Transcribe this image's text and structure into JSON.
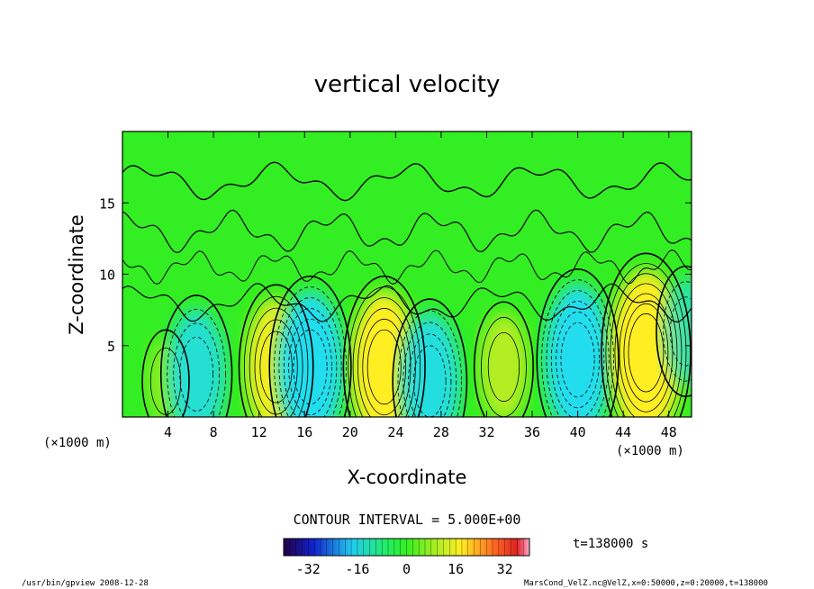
{
  "chart_data": {
    "type": "heatmap",
    "title": "vertical velocity",
    "xlabel": "X-coordinate",
    "ylabel": "Z-coordinate",
    "x_unit_left": "(×1000 m)",
    "x_unit_right": "(×1000 m)",
    "xlim": [
      0,
      50
    ],
    "ylim": [
      0,
      20
    ],
    "x_ticks": [
      4,
      8,
      12,
      16,
      20,
      24,
      28,
      32,
      36,
      40,
      44,
      48
    ],
    "y_ticks": [
      5,
      10,
      15
    ],
    "contour_interval_label": "CONTOUR INTERVAL = 5.000E+00",
    "contour_interval": 5,
    "time_label": "t=138000 s",
    "colorbar": {
      "range": [
        -40,
        40
      ],
      "ticks": [
        -32,
        -16,
        0,
        16,
        32
      ]
    },
    "cells": [
      {
        "x": 3.8,
        "z": 2.5,
        "w": 2,
        "type": "up"
      },
      {
        "x": 6.5,
        "z": 3.0,
        "w": -18,
        "type": "down"
      },
      {
        "x": 13.5,
        "z": 3.5,
        "w": 20,
        "type": "up"
      },
      {
        "x": 16.5,
        "z": 3.5,
        "w": -25,
        "type": "down"
      },
      {
        "x": 23.0,
        "z": 3.5,
        "w": 25,
        "type": "up"
      },
      {
        "x": 27.0,
        "z": 2.5,
        "w": -20,
        "type": "down"
      },
      {
        "x": 33.5,
        "z": 3.5,
        "w": 10,
        "type": "up"
      },
      {
        "x": 40.0,
        "z": 4.0,
        "w": -25,
        "type": "down"
      },
      {
        "x": 46.0,
        "z": 4.5,
        "w": 30,
        "type": "up"
      },
      {
        "x": 49.5,
        "z": 6.0,
        "w": -10,
        "type": "down"
      }
    ]
  },
  "footer": {
    "left": "/usr/bin/gpview   2008-12-28",
    "right": "MarsCond_VelZ.nc@VelZ,x=0:50000,z=0:20000,t=138000"
  },
  "colors": {
    "zero": "#33ee22",
    "up": "#ffee22",
    "down": "#22ddee",
    "contour": "#000000"
  }
}
